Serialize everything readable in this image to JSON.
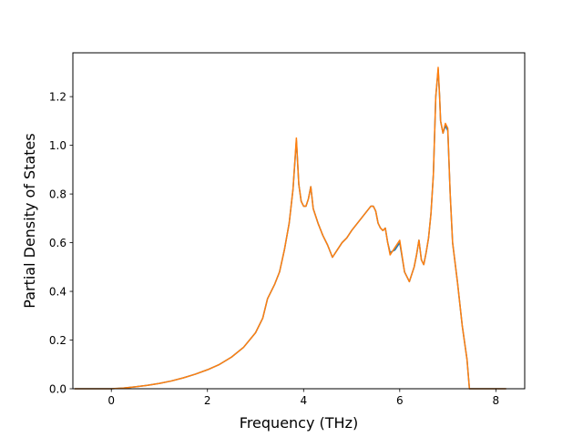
{
  "chart_data": {
    "type": "line",
    "title": "",
    "xlabel": "Frequency (THz)",
    "ylabel": "Partial Density of States",
    "xlim": [
      -0.8,
      8.6
    ],
    "ylim": [
      0.0,
      1.38
    ],
    "x_ticks": [
      0,
      2,
      4,
      6,
      8
    ],
    "x_tick_labels": [
      "0",
      "2",
      "4",
      "6",
      "8"
    ],
    "y_ticks": [
      0.0,
      0.2,
      0.4,
      0.6,
      0.8,
      1.0,
      1.2
    ],
    "y_tick_labels": [
      "0.0",
      "0.2",
      "0.4",
      "0.6",
      "0.8",
      "1.0",
      "1.2"
    ],
    "grid": false,
    "legend": "none",
    "series": [
      {
        "color": "#1f77b4",
        "x": [
          -0.75,
          -0.5,
          -0.25,
          0.0,
          0.25,
          0.5,
          0.75,
          1.0,
          1.25,
          1.5,
          1.75,
          2.0,
          2.25,
          2.5,
          2.75,
          3.0,
          3.15,
          3.25,
          3.4,
          3.5,
          3.6,
          3.7,
          3.78,
          3.85,
          3.9,
          3.95,
          4.0,
          4.05,
          4.1,
          4.15,
          4.2,
          4.3,
          4.4,
          4.5,
          4.6,
          4.7,
          4.8,
          4.9,
          5.0,
          5.2,
          5.4,
          5.45,
          5.5,
          5.55,
          5.6,
          5.65,
          5.7,
          5.75,
          5.8,
          5.9,
          6.0,
          6.1,
          6.2,
          6.3,
          6.35,
          6.4,
          6.45,
          6.5,
          6.55,
          6.6,
          6.65,
          6.7,
          6.75,
          6.8,
          6.83,
          6.85,
          6.9,
          6.95,
          7.0,
          7.05,
          7.1,
          7.2,
          7.3,
          7.4,
          7.45,
          7.5,
          8.2
        ],
        "values": [
          0.0,
          0.0,
          0.0,
          0.0,
          0.003,
          0.008,
          0.014,
          0.022,
          0.032,
          0.045,
          0.06,
          0.078,
          0.1,
          0.13,
          0.17,
          0.23,
          0.29,
          0.37,
          0.43,
          0.48,
          0.57,
          0.68,
          0.82,
          1.02,
          0.84,
          0.77,
          0.75,
          0.75,
          0.78,
          0.83,
          0.74,
          0.68,
          0.63,
          0.59,
          0.54,
          0.57,
          0.6,
          0.62,
          0.65,
          0.7,
          0.75,
          0.75,
          0.73,
          0.68,
          0.66,
          0.65,
          0.66,
          0.6,
          0.56,
          0.57,
          0.6,
          0.48,
          0.44,
          0.5,
          0.55,
          0.61,
          0.53,
          0.51,
          0.56,
          0.62,
          0.72,
          0.88,
          1.2,
          1.31,
          1.2,
          1.1,
          1.05,
          1.08,
          1.06,
          0.8,
          0.6,
          0.44,
          0.26,
          0.12,
          0.0,
          0.0,
          0.0
        ]
      },
      {
        "color": "#ff7f0e",
        "x": [
          -0.75,
          -0.5,
          -0.25,
          0.0,
          0.25,
          0.5,
          0.75,
          1.0,
          1.25,
          1.5,
          1.75,
          2.0,
          2.25,
          2.5,
          2.75,
          3.0,
          3.15,
          3.25,
          3.4,
          3.5,
          3.6,
          3.7,
          3.78,
          3.85,
          3.9,
          3.95,
          4.0,
          4.05,
          4.1,
          4.15,
          4.2,
          4.3,
          4.4,
          4.5,
          4.6,
          4.7,
          4.8,
          4.9,
          5.0,
          5.2,
          5.4,
          5.45,
          5.5,
          5.55,
          5.6,
          5.65,
          5.7,
          5.75,
          5.8,
          5.9,
          6.0,
          6.1,
          6.2,
          6.3,
          6.35,
          6.4,
          6.45,
          6.5,
          6.55,
          6.6,
          6.65,
          6.7,
          6.75,
          6.8,
          6.83,
          6.85,
          6.9,
          6.95,
          7.0,
          7.05,
          7.1,
          7.2,
          7.3,
          7.4,
          7.45,
          7.5,
          8.2
        ],
        "values": [
          0.0,
          0.0,
          0.0,
          0.0,
          0.003,
          0.008,
          0.014,
          0.022,
          0.032,
          0.045,
          0.06,
          0.078,
          0.1,
          0.13,
          0.17,
          0.23,
          0.29,
          0.37,
          0.43,
          0.48,
          0.57,
          0.68,
          0.82,
          1.03,
          0.84,
          0.77,
          0.75,
          0.75,
          0.78,
          0.83,
          0.74,
          0.68,
          0.63,
          0.59,
          0.54,
          0.57,
          0.6,
          0.62,
          0.65,
          0.7,
          0.75,
          0.75,
          0.73,
          0.68,
          0.66,
          0.65,
          0.66,
          0.6,
          0.55,
          0.58,
          0.61,
          0.48,
          0.44,
          0.5,
          0.55,
          0.61,
          0.53,
          0.51,
          0.56,
          0.62,
          0.72,
          0.88,
          1.2,
          1.32,
          1.2,
          1.1,
          1.05,
          1.09,
          1.07,
          0.8,
          0.6,
          0.44,
          0.26,
          0.12,
          0.0,
          0.0,
          0.0
        ]
      }
    ]
  }
}
